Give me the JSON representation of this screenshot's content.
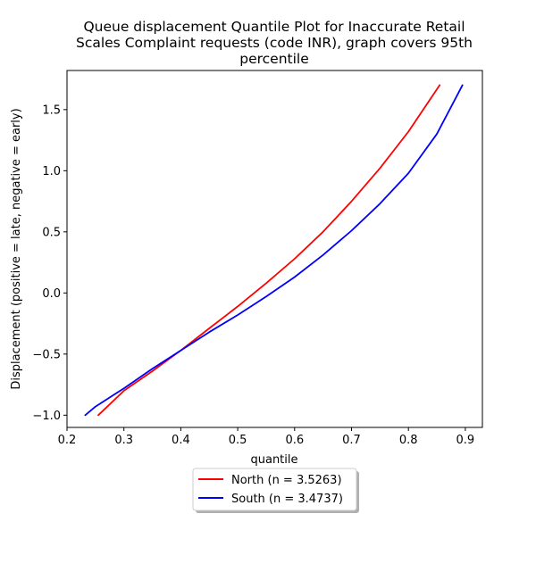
{
  "chart_data": {
    "type": "line",
    "title_lines": [
      "Queue displacement Quantile Plot for Inaccurate Retail",
      "Scales Complaint  requests (code INR), graph covers 95th",
      "percentile"
    ],
    "xlabel": "quantile",
    "ylabel": "Displacement (positive = late, negative = early)",
    "xlim": [
      0.2,
      0.93
    ],
    "ylim": [
      -1.1,
      1.82
    ],
    "xticks": [
      0.2,
      0.3,
      0.4,
      0.5,
      0.6,
      0.7,
      0.8,
      0.9
    ],
    "xtick_labels": [
      "0.2",
      "0.3",
      "0.4",
      "0.5",
      "0.6",
      "0.7",
      "0.8",
      "0.9"
    ],
    "yticks": [
      -1.0,
      -0.5,
      0.0,
      0.5,
      1.0,
      1.5
    ],
    "ytick_labels": [
      "−1.0",
      "−0.5",
      "0.0",
      "0.5",
      "1.0",
      "1.5"
    ],
    "grid": false,
    "legend_position": "below-center",
    "series": [
      {
        "name": "North (n = 3.5263)",
        "color": "#ff0000",
        "x": [
          0.255,
          0.3,
          0.35,
          0.4,
          0.45,
          0.5,
          0.55,
          0.6,
          0.65,
          0.7,
          0.75,
          0.8,
          0.855
        ],
        "y": [
          -1.0,
          -0.8,
          -0.64,
          -0.47,
          -0.29,
          -0.11,
          0.08,
          0.28,
          0.5,
          0.75,
          1.02,
          1.32,
          1.7
        ]
      },
      {
        "name": "South (n = 3.4737)",
        "color": "#0000ff",
        "x": [
          0.232,
          0.25,
          0.3,
          0.35,
          0.4,
          0.45,
          0.5,
          0.55,
          0.6,
          0.65,
          0.7,
          0.75,
          0.8,
          0.85,
          0.895
        ],
        "y": [
          -1.0,
          -0.93,
          -0.78,
          -0.62,
          -0.47,
          -0.32,
          -0.18,
          -0.03,
          0.13,
          0.31,
          0.51,
          0.73,
          0.98,
          1.3,
          1.7
        ]
      }
    ]
  }
}
